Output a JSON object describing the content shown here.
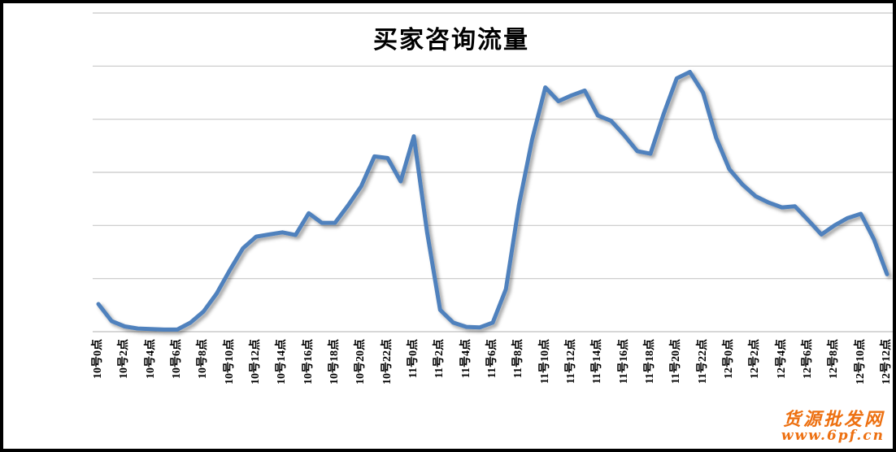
{
  "title": "买家咨询流量",
  "watermark": {
    "site_name": "货源批发网",
    "site_url": "www.6pf.cn",
    "color": "#ED7011"
  },
  "chart_data": {
    "type": "line",
    "title": "买家咨询流量",
    "legend": "none",
    "grid": "horizontal",
    "y_axis_tick_labels_visible": false,
    "ylim": [
      0,
      600
    ],
    "y_gridline_interval": 100,
    "x_tick_labels": [
      "10号0点",
      "10号2点",
      "10号4点",
      "10号6点",
      "10号8点",
      "10号10点",
      "10号12点",
      "10号14点",
      "10号16点",
      "10号18点",
      "10号20点",
      "10号22点",
      "11号0点",
      "11号2点",
      "11号4点",
      "11号6点",
      "11号8点",
      "11号10点",
      "11号12点",
      "11号14点",
      "11号16点",
      "11号18点",
      "11号20点",
      "11号22点",
      "12号0点",
      "12号2点",
      "12号4点",
      "12号6点",
      "12号8点",
      "12号10点",
      "12号12点"
    ],
    "x_tick_every_n_points": 2,
    "note": "one data point per hour from 10号0点 (index 0) to 12号12点 (index 60); y values estimated against unlabeled gridlines (100 units per gridline)",
    "series": [
      {
        "name": "买家咨询流量",
        "color": "#4F81BD",
        "values": [
          52,
          20,
          10,
          6,
          5,
          4,
          4,
          17,
          38,
          72,
          116,
          157,
          179,
          183,
          187,
          182,
          223,
          205,
          205,
          238,
          274,
          330,
          327,
          283,
          368,
          188,
          41,
          17,
          9,
          8,
          17,
          80,
          239,
          362,
          460,
          434,
          445,
          454,
          407,
          397,
          370,
          340,
          335,
          410,
          477,
          489,
          450,
          365,
          306,
          277,
          255,
          243,
          234,
          236,
          210,
          183,
          200,
          214,
          222,
          174,
          108
        ]
      }
    ],
    "colors": {
      "line": "#4F81BD",
      "gridline": "#C8C8C8",
      "axis": "#BFBFBF",
      "frame": "#000000"
    }
  }
}
